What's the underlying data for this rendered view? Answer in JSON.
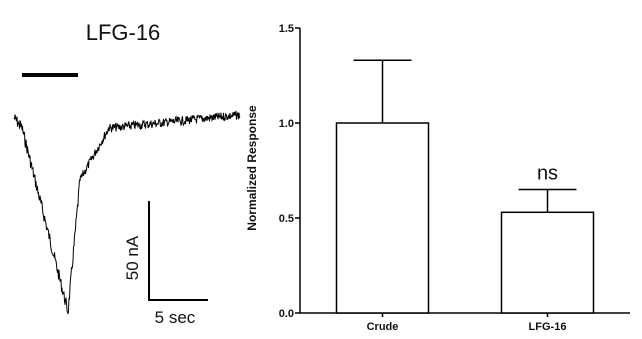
{
  "trace_panel": {
    "title": "LFG-16",
    "scale_bar_y_label": "50 nA",
    "scale_bar_x_label": "5 sec"
  },
  "chart_data": {
    "type": "bar",
    "categories": [
      "Crude",
      "LFG-16"
    ],
    "values": [
      1.0,
      0.53
    ],
    "errors": [
      0.33,
      0.12
    ],
    "annotations": [
      "",
      "ns"
    ],
    "ylabel": "Normalized Response",
    "xlabel": "",
    "ylim": [
      0.0,
      1.5
    ],
    "yticks": [
      "0.0",
      "0.5",
      "1.0",
      "1.5"
    ],
    "ytick_values": [
      0.0,
      0.5,
      1.0,
      1.5
    ],
    "grid": false,
    "colors": {
      "bar_fill": "#ffffff",
      "stroke": "#000000"
    }
  }
}
